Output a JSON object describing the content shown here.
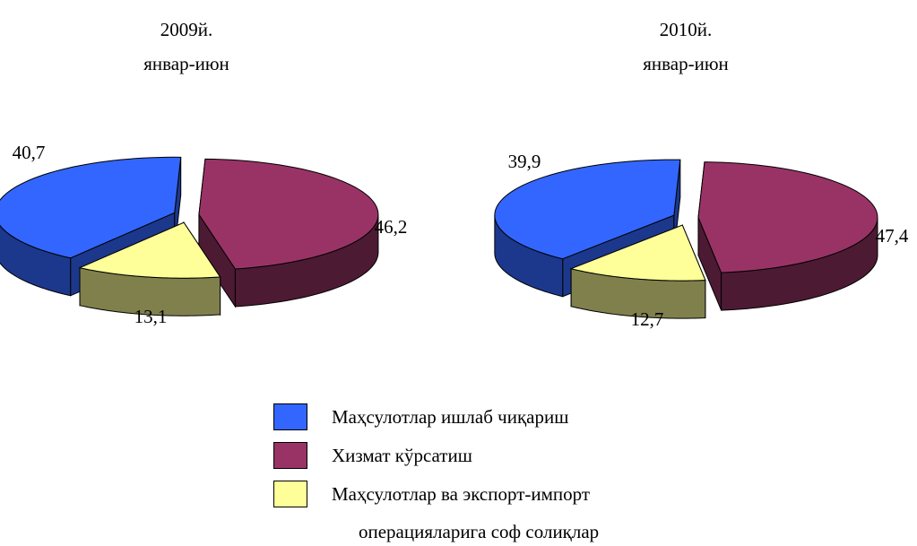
{
  "chart_data": [
    {
      "type": "pie",
      "title": [
        "2009й.",
        "январ-июн"
      ],
      "values": [
        40.7,
        46.2,
        13.1
      ],
      "value_labels": [
        "40,7",
        "46,2",
        "13,1"
      ]
    },
    {
      "type": "pie",
      "title": [
        "2010й.",
        "январ-июн"
      ],
      "values": [
        39.9,
        47.4,
        12.7
      ],
      "value_labels": [
        "39,9",
        "47,4",
        "12,7"
      ]
    }
  ],
  "legend": {
    "categories": [
      "Маҳсулотлар ишлаб чиқариш",
      "Хизмат кўрсатиш",
      "Маҳсулотлар ва экспорт-импорт операцияларига соф солиқлар"
    ],
    "colors": [
      "#3366ff",
      "#993366",
      "#ffff99"
    ]
  }
}
